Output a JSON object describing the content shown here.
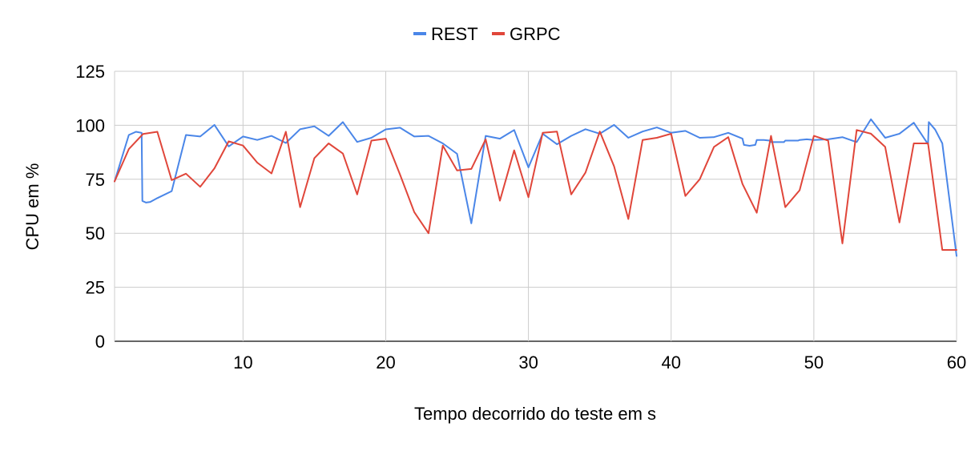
{
  "chart_data": {
    "type": "line",
    "title": "",
    "xlabel": "Tempo decorrido do teste em s",
    "ylabel": "CPU em %",
    "xlim": [
      1,
      60
    ],
    "ylim": [
      0,
      125
    ],
    "x_ticks": [
      10,
      20,
      30,
      40,
      50,
      60
    ],
    "y_ticks": [
      0,
      25,
      50,
      75,
      100,
      125
    ],
    "grid": true,
    "legend_position": "top-center",
    "series": [
      {
        "name": "REST",
        "color": "#4a86e8",
        "points": [
          [
            1,
            74
          ],
          [
            2,
            95.5
          ],
          [
            2.5,
            97
          ],
          [
            2.9,
            96.5
          ],
          [
            2.95,
            65
          ],
          [
            3.2,
            64.2
          ],
          [
            3.5,
            64.5
          ],
          [
            4,
            66.3
          ],
          [
            5,
            69.5
          ],
          [
            6,
            95.5
          ],
          [
            7,
            94.8
          ],
          [
            8,
            100.2
          ],
          [
            9,
            90.2
          ],
          [
            10,
            94.8
          ],
          [
            11,
            93.2
          ],
          [
            12,
            95.1
          ],
          [
            13,
            91.8
          ],
          [
            14,
            98.2
          ],
          [
            15,
            99.5
          ],
          [
            16,
            95.1
          ],
          [
            17,
            101.5
          ],
          [
            18,
            92.3
          ],
          [
            19,
            94.2
          ],
          [
            20,
            98.1
          ],
          [
            21,
            98.9
          ],
          [
            22,
            94.8
          ],
          [
            23,
            95.1
          ],
          [
            24,
            91.6
          ],
          [
            25,
            86.8
          ],
          [
            26,
            54.6
          ],
          [
            27,
            95.1
          ],
          [
            28,
            93.8
          ],
          [
            29,
            97.8
          ],
          [
            30,
            80.5
          ],
          [
            31,
            96.1
          ],
          [
            32,
            91.2
          ],
          [
            33,
            95.1
          ],
          [
            34,
            98.2
          ],
          [
            35,
            96.1
          ],
          [
            36,
            100.2
          ],
          [
            37,
            94.2
          ],
          [
            38,
            97.1
          ],
          [
            39,
            99
          ],
          [
            40,
            96.5
          ],
          [
            41,
            97.4
          ],
          [
            42,
            94.2
          ],
          [
            43,
            94.5
          ],
          [
            44,
            96.5
          ],
          [
            45,
            93.8
          ],
          [
            45.1,
            90.9
          ],
          [
            45.5,
            90.5
          ],
          [
            45.9,
            90.9
          ],
          [
            46,
            93.2
          ],
          [
            46.5,
            93.2
          ],
          [
            46.9,
            92.9
          ],
          [
            47,
            92.2
          ],
          [
            47.5,
            92.2
          ],
          [
            47.9,
            92.2
          ],
          [
            48,
            92.9
          ],
          [
            48.5,
            92.9
          ],
          [
            48.9,
            92.9
          ],
          [
            49,
            93.2
          ],
          [
            49.5,
            93.5
          ],
          [
            50,
            93.2
          ],
          [
            51,
            93.5
          ],
          [
            52,
            94.5
          ],
          [
            53,
            92.2
          ],
          [
            54,
            102.8
          ],
          [
            55,
            94.2
          ],
          [
            56,
            96.1
          ],
          [
            57,
            101.2
          ],
          [
            58,
            91.2
          ],
          [
            58.05,
            101.5
          ],
          [
            58.5,
            98
          ],
          [
            59,
            91.6
          ],
          [
            60,
            39.5
          ]
        ]
      },
      {
        "name": "GRPC",
        "color": "#e0463a",
        "points": [
          [
            1,
            74
          ],
          [
            2,
            89
          ],
          [
            3,
            96
          ],
          [
            4,
            97
          ],
          [
            5,
            74.6
          ],
          [
            6,
            77.6
          ],
          [
            7,
            71.5
          ],
          [
            8,
            80.1
          ],
          [
            9,
            92.6
          ],
          [
            10,
            90.6
          ],
          [
            11,
            82.7
          ],
          [
            12,
            77.7
          ],
          [
            13,
            97
          ],
          [
            14,
            62.1
          ],
          [
            15,
            84.8
          ],
          [
            16,
            91.6
          ],
          [
            17,
            86.9
          ],
          [
            18,
            68
          ],
          [
            19,
            92.9
          ],
          [
            20,
            93.8
          ],
          [
            21,
            77.2
          ],
          [
            22,
            59.8
          ],
          [
            23,
            50
          ],
          [
            24,
            90.6
          ],
          [
            25,
            79.1
          ],
          [
            26,
            79.8
          ],
          [
            27,
            93.5
          ],
          [
            28,
            65.1
          ],
          [
            29,
            88.4
          ],
          [
            30,
            66.7
          ],
          [
            31,
            96.5
          ],
          [
            32,
            97.1
          ],
          [
            33,
            68
          ],
          [
            34,
            78.1
          ],
          [
            35,
            97.1
          ],
          [
            36,
            81
          ],
          [
            37,
            56.6
          ],
          [
            38,
            93.2
          ],
          [
            39,
            94.2
          ],
          [
            40,
            96.1
          ],
          [
            41,
            67.3
          ],
          [
            42,
            75
          ],
          [
            43,
            90
          ],
          [
            44,
            94.5
          ],
          [
            45,
            72.8
          ],
          [
            46,
            59.5
          ],
          [
            47,
            95.1
          ],
          [
            48,
            62.1
          ],
          [
            49,
            69.9
          ],
          [
            50,
            95.1
          ],
          [
            51,
            92.9
          ],
          [
            52,
            45.3
          ],
          [
            53,
            97.8
          ],
          [
            54,
            96.1
          ],
          [
            55,
            90
          ],
          [
            56,
            55
          ],
          [
            57,
            91.6
          ],
          [
            58,
            91.6
          ],
          [
            59,
            42.3
          ],
          [
            60,
            42.3
          ]
        ]
      }
    ]
  }
}
